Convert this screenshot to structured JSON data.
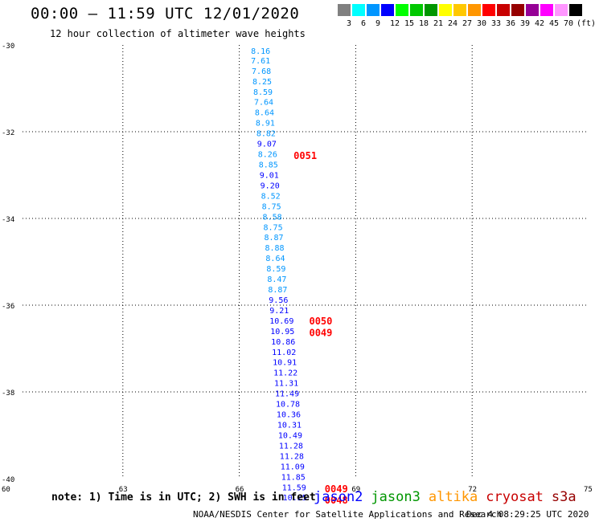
{
  "header": {
    "title": "00:00 – 11:59 UTC 12/01/2020",
    "subtitle": "12 hour collection of altimeter wave heights"
  },
  "colorbar": {
    "colors": [
      "#808080",
      "#00ffff",
      "#0096ff",
      "#0000ff",
      "#00ff00",
      "#00c800",
      "#009600",
      "#ffff00",
      "#ffc800",
      "#ff9600",
      "#ff0000",
      "#c80000",
      "#960000",
      "#960096",
      "#ff00ff",
      "#ff96ff",
      "#000000"
    ],
    "labels": [
      "3",
      "6",
      "9",
      "12",
      "15",
      "18",
      "21",
      "24",
      "27",
      "30",
      "33",
      "36",
      "39",
      "42",
      "45",
      "70",
      "(ft)"
    ]
  },
  "chart_data": {
    "type": "scatter",
    "xlim": [
      60,
      75
    ],
    "ylim": [
      -40,
      -30
    ],
    "x_ticks": [
      "60",
      "63",
      "66",
      "69",
      "72",
      "75"
    ],
    "y_ticks": [
      "-30",
      "-32",
      "-34",
      "-36",
      "-38",
      "-40"
    ],
    "points": [
      {
        "x": 66.3,
        "y": -30.13,
        "label": "8.16",
        "color": "#0096ff"
      },
      {
        "x": 66.3,
        "y": -30.35,
        "label": "7.61",
        "color": "#0096ff"
      },
      {
        "x": 66.32,
        "y": -30.59,
        "label": "7.68",
        "color": "#0096ff"
      },
      {
        "x": 66.34,
        "y": -30.83,
        "label": "8.25",
        "color": "#0096ff"
      },
      {
        "x": 66.36,
        "y": -31.07,
        "label": "8.59",
        "color": "#0096ff"
      },
      {
        "x": 66.38,
        "y": -31.31,
        "label": "7.64",
        "color": "#0096ff"
      },
      {
        "x": 66.4,
        "y": -31.55,
        "label": "8.64",
        "color": "#0096ff"
      },
      {
        "x": 66.42,
        "y": -31.79,
        "label": "8.91",
        "color": "#0096ff"
      },
      {
        "x": 66.44,
        "y": -32.03,
        "label": "8.82",
        "color": "#0096ff"
      },
      {
        "x": 66.46,
        "y": -32.27,
        "label": "9.07",
        "color": "#0000ff"
      },
      {
        "x": 66.48,
        "y": -32.51,
        "label": "8.26",
        "color": "#0096ff"
      },
      {
        "x": 66.5,
        "y": -32.75,
        "label": "8.85",
        "color": "#0096ff"
      },
      {
        "x": 66.52,
        "y": -32.99,
        "label": "9.01",
        "color": "#0000ff"
      },
      {
        "x": 66.54,
        "y": -33.23,
        "label": "9.20",
        "color": "#0000ff"
      },
      {
        "x": 66.56,
        "y": -33.47,
        "label": "8.52",
        "color": "#0096ff"
      },
      {
        "x": 66.58,
        "y": -33.71,
        "label": "8.75",
        "color": "#0096ff"
      },
      {
        "x": 66.6,
        "y": -33.95,
        "label": "8.58",
        "color": "#0096ff"
      },
      {
        "x": 66.62,
        "y": -34.19,
        "label": "8.75",
        "color": "#0096ff"
      },
      {
        "x": 66.64,
        "y": -34.43,
        "label": "8.87",
        "color": "#0096ff"
      },
      {
        "x": 66.66,
        "y": -34.67,
        "label": "8.88",
        "color": "#0096ff"
      },
      {
        "x": 66.68,
        "y": -34.91,
        "label": "8.64",
        "color": "#0096ff"
      },
      {
        "x": 66.7,
        "y": -35.15,
        "label": "8.59",
        "color": "#0096ff"
      },
      {
        "x": 66.72,
        "y": -35.39,
        "label": "8.47",
        "color": "#0096ff"
      },
      {
        "x": 66.74,
        "y": -35.63,
        "label": "8.87",
        "color": "#0096ff"
      },
      {
        "x": 66.76,
        "y": -35.87,
        "label": "9.56",
        "color": "#0000ff"
      },
      {
        "x": 66.78,
        "y": -36.11,
        "label": "9.21",
        "color": "#0000ff"
      },
      {
        "x": 66.78,
        "y": -36.35,
        "label": "10.69",
        "color": "#0000ff"
      },
      {
        "x": 66.8,
        "y": -36.59,
        "label": "10.95",
        "color": "#0000ff"
      },
      {
        "x": 66.82,
        "y": -36.83,
        "label": "10.86",
        "color": "#0000ff"
      },
      {
        "x": 66.84,
        "y": -37.07,
        "label": "11.02",
        "color": "#0000ff"
      },
      {
        "x": 66.86,
        "y": -37.31,
        "label": "10.91",
        "color": "#0000ff"
      },
      {
        "x": 66.88,
        "y": -37.55,
        "label": "11.22",
        "color": "#0000ff"
      },
      {
        "x": 66.9,
        "y": -37.79,
        "label": "11.31",
        "color": "#0000ff"
      },
      {
        "x": 66.92,
        "y": -38.03,
        "label": "11.49",
        "color": "#0000ff"
      },
      {
        "x": 66.94,
        "y": -38.27,
        "label": "10.78",
        "color": "#0000ff"
      },
      {
        "x": 66.96,
        "y": -38.51,
        "label": "10.36",
        "color": "#0000ff"
      },
      {
        "x": 66.98,
        "y": -38.75,
        "label": "10.31",
        "color": "#0000ff"
      },
      {
        "x": 67.0,
        "y": -38.99,
        "label": "10.49",
        "color": "#0000ff"
      },
      {
        "x": 67.02,
        "y": -39.23,
        "label": "11.28",
        "color": "#0000ff"
      },
      {
        "x": 67.04,
        "y": -39.47,
        "label": "11.28",
        "color": "#0000ff"
      },
      {
        "x": 67.06,
        "y": -39.71,
        "label": "11.09",
        "color": "#0000ff"
      },
      {
        "x": 67.08,
        "y": -39.95,
        "label": "11.85",
        "color": "#0000ff"
      },
      {
        "x": 67.1,
        "y": -40.19,
        "label": "11.59",
        "color": "#0000ff"
      },
      {
        "x": 67.12,
        "y": -40.43,
        "label": "10.25",
        "color": "#0000ff"
      }
    ],
    "time_labels": [
      {
        "x": 67.4,
        "y": -32.54,
        "label": "0051",
        "color": "#ff0000"
      },
      {
        "x": 67.8,
        "y": -36.35,
        "label": "0050",
        "color": "#ff0000"
      },
      {
        "x": 67.8,
        "y": -36.62,
        "label": "0049",
        "color": "#ff0000"
      },
      {
        "x": 68.2,
        "y": -40.22,
        "label": "0049",
        "color": "#ff0000"
      },
      {
        "x": 68.2,
        "y": -40.48,
        "label": "0048",
        "color": "#ff0000"
      }
    ]
  },
  "footer": {
    "note": "note: 1) Time is in UTC; 2) SWH is in feet",
    "missions": [
      {
        "name": "jason2",
        "color": "#0000ff"
      },
      {
        "name": "jason3",
        "color": "#009600"
      },
      {
        "name": "altika",
        "color": "#ff9600"
      },
      {
        "name": "cryosat",
        "color": "#c80000"
      },
      {
        "name": "s3a",
        "color": "#960000"
      }
    ],
    "credit": "NOAA/NESDIS Center for Satellite Applications and Research",
    "date": "Dec  4 08:29:25 UTC 2020"
  }
}
